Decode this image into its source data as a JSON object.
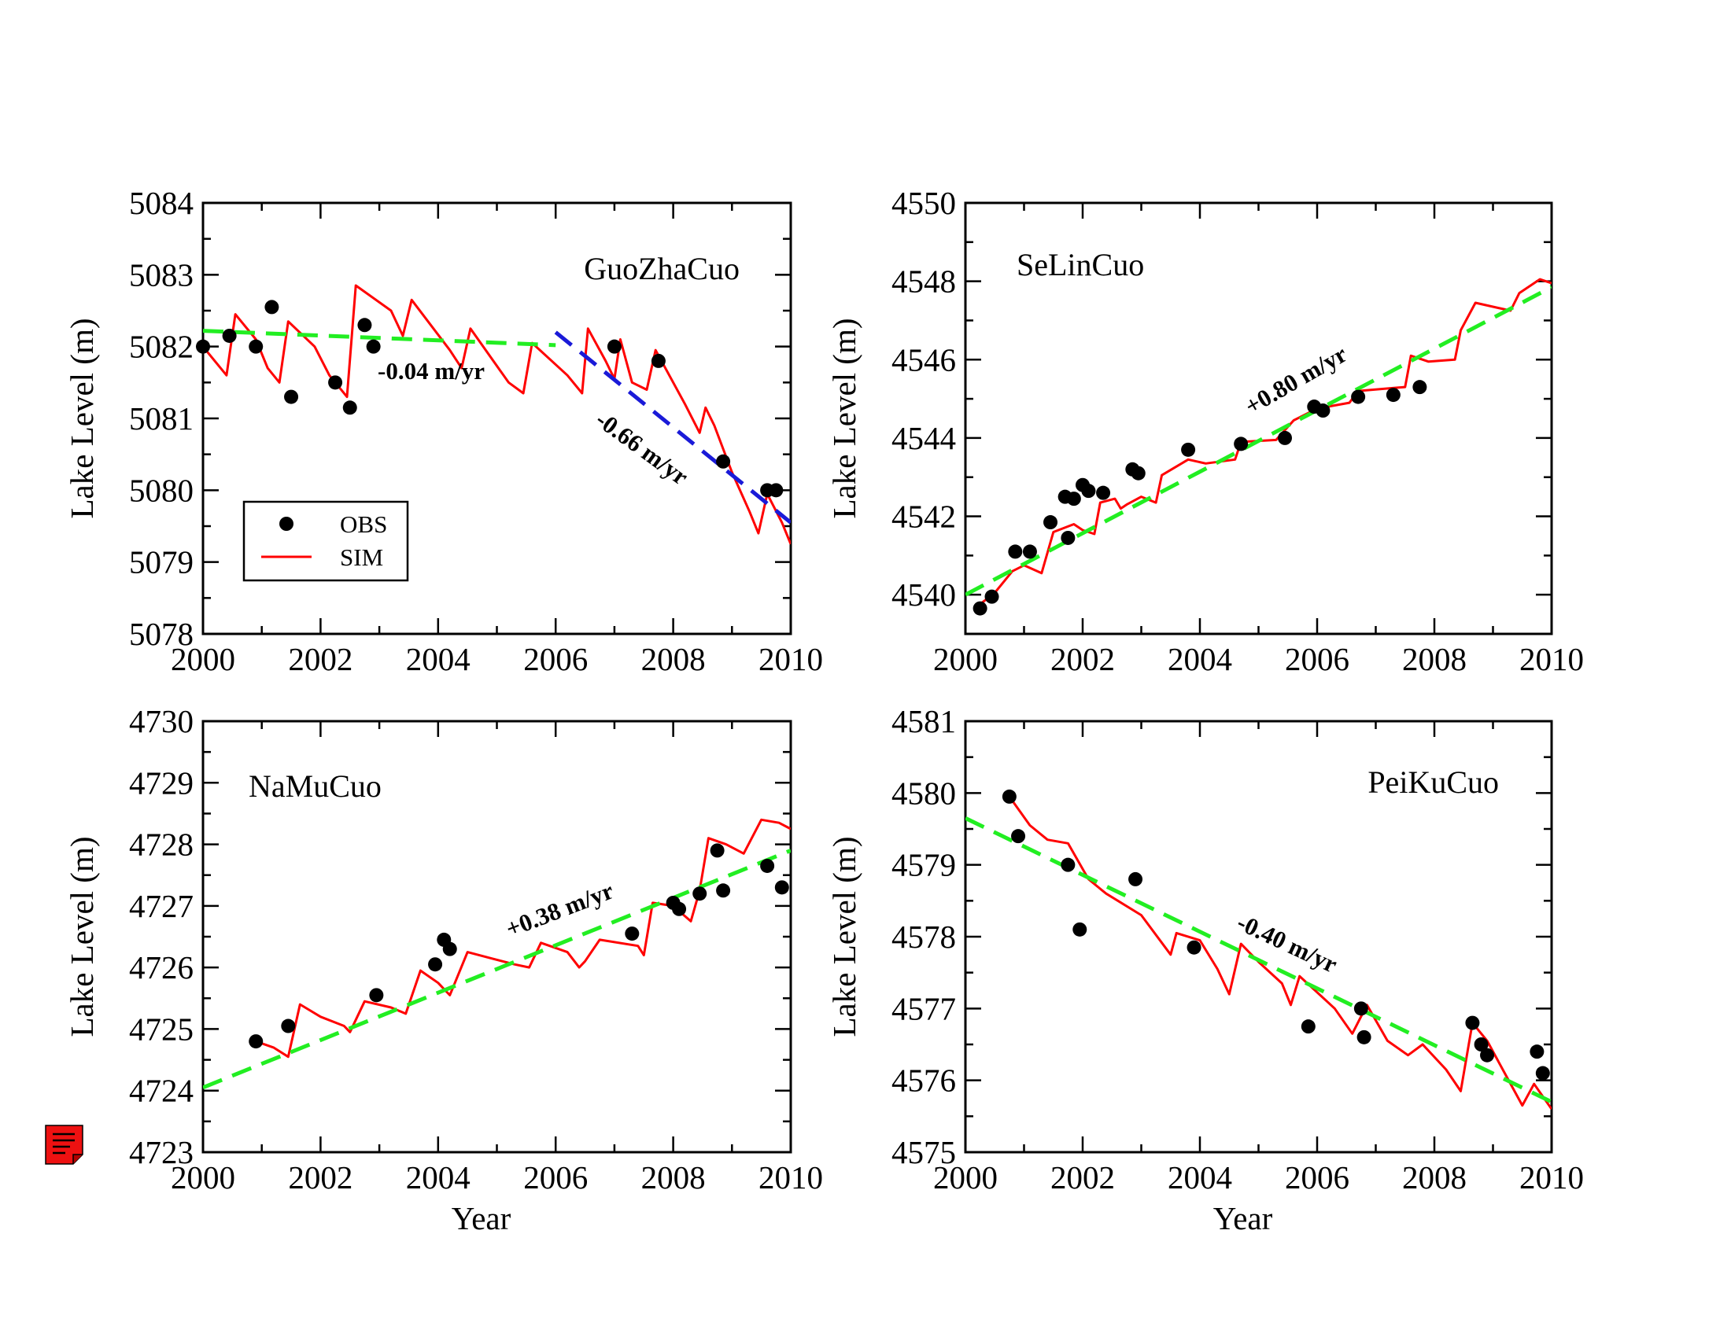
{
  "icons": {
    "note": "note-icon"
  },
  "colors": {
    "obs": "#000000",
    "sim": "#ff0000",
    "trend_green": "#22ee22",
    "trend_blue": "#1a1ad8",
    "note_icon": "#ee1111"
  },
  "chart_data": [
    {
      "type": "line",
      "id": "guozhacuo",
      "panel_label": "GuoZhaCuo",
      "xlabel": "",
      "ylabel": "Lake Level (m)",
      "xlim": [
        2000,
        2010
      ],
      "ylim": [
        5078,
        5084
      ],
      "xticks": [
        2000,
        2002,
        2004,
        2006,
        2008,
        2010
      ],
      "yticks": [
        5078,
        5079,
        5080,
        5081,
        5082,
        5083,
        5084
      ],
      "legend": {
        "position": "bottom-left",
        "entries": [
          "OBS",
          "SIM"
        ]
      },
      "obs": [
        [
          2000.0,
          5082.0
        ],
        [
          2000.45,
          5082.15
        ],
        [
          2000.9,
          5082.0
        ],
        [
          2001.17,
          5082.55
        ],
        [
          2001.5,
          5081.3
        ],
        [
          2002.25,
          5081.5
        ],
        [
          2002.5,
          5081.15
        ],
        [
          2002.75,
          5082.3
        ],
        [
          2002.9,
          5082.0
        ],
        [
          2007.0,
          5082.0
        ],
        [
          2007.75,
          5081.8
        ],
        [
          2008.85,
          5080.4
        ],
        [
          2009.6,
          5080.0
        ],
        [
          2009.75,
          5080.0
        ]
      ],
      "sim": [
        [
          2000.0,
          5082.0
        ],
        [
          2000.4,
          5081.6
        ],
        [
          2000.55,
          5082.45
        ],
        [
          2000.9,
          5082.1
        ],
        [
          2001.1,
          5081.7
        ],
        [
          2001.3,
          5081.5
        ],
        [
          2001.45,
          5082.35
        ],
        [
          2001.9,
          5082.0
        ],
        [
          2002.15,
          5081.6
        ],
        [
          2002.45,
          5081.3
        ],
        [
          2002.6,
          5082.85
        ],
        [
          2003.2,
          5082.5
        ],
        [
          2003.4,
          5082.15
        ],
        [
          2003.55,
          5082.65
        ],
        [
          2004.2,
          5081.95
        ],
        [
          2004.4,
          5081.7
        ],
        [
          2004.55,
          5082.25
        ],
        [
          2005.2,
          5081.5
        ],
        [
          2005.45,
          5081.35
        ],
        [
          2005.6,
          5082.05
        ],
        [
          2006.2,
          5081.6
        ],
        [
          2006.45,
          5081.35
        ],
        [
          2006.55,
          5082.25
        ],
        [
          2006.85,
          5081.8
        ],
        [
          2007.0,
          5081.55
        ],
        [
          2007.1,
          5082.1
        ],
        [
          2007.3,
          5081.5
        ],
        [
          2007.55,
          5081.4
        ],
        [
          2007.7,
          5081.95
        ],
        [
          2008.2,
          5081.2
        ],
        [
          2008.45,
          5080.8
        ],
        [
          2008.55,
          5081.15
        ],
        [
          2008.7,
          5080.9
        ],
        [
          2009.0,
          5080.25
        ],
        [
          2009.3,
          5079.7
        ],
        [
          2009.45,
          5079.4
        ],
        [
          2009.6,
          5079.95
        ],
        [
          2009.85,
          5079.55
        ],
        [
          2010.0,
          5079.25
        ]
      ],
      "trends": [
        {
          "label": "-0.04 m/yr",
          "color": "green",
          "from": [
            2000.0,
            5082.22
          ],
          "to": [
            2006.0,
            5082.02
          ]
        },
        {
          "label": "-0.66 m/yr",
          "color": "blue",
          "from": [
            2006.0,
            5082.2
          ],
          "to": [
            2010.0,
            5079.55
          ]
        }
      ]
    },
    {
      "type": "line",
      "id": "selincuo",
      "panel_label": "SeLinCuo",
      "xlabel": "",
      "ylabel": "Lake Level (m)",
      "xlim": [
        2000,
        2010
      ],
      "ylim": [
        4539,
        4550
      ],
      "xticks": [
        2000,
        2002,
        2004,
        2006,
        2008,
        2010
      ],
      "yticks": [
        4540,
        4542,
        4544,
        4546,
        4548,
        4550
      ],
      "obs": [
        [
          2000.25,
          4539.65
        ],
        [
          2000.45,
          4539.95
        ],
        [
          2000.85,
          4541.1
        ],
        [
          2001.1,
          4541.1
        ],
        [
          2001.45,
          4541.85
        ],
        [
          2001.7,
          4542.5
        ],
        [
          2001.75,
          4541.45
        ],
        [
          2001.85,
          4542.45
        ],
        [
          2002.0,
          4542.8
        ],
        [
          2002.1,
          4542.65
        ],
        [
          2002.35,
          4542.6
        ],
        [
          2002.85,
          4543.2
        ],
        [
          2002.95,
          4543.1
        ],
        [
          2003.8,
          4543.7
        ],
        [
          2004.7,
          4543.85
        ],
        [
          2005.45,
          4544.0
        ],
        [
          2005.95,
          4544.8
        ],
        [
          2006.1,
          4544.7
        ],
        [
          2006.7,
          4545.05
        ],
        [
          2007.3,
          4545.1
        ],
        [
          2007.75,
          4545.3
        ]
      ],
      "sim": [
        [
          2000.2,
          4539.7
        ],
        [
          2000.5,
          4540.05
        ],
        [
          2000.8,
          4540.6
        ],
        [
          2001.0,
          4540.75
        ],
        [
          2001.3,
          4540.55
        ],
        [
          2001.5,
          4541.6
        ],
        [
          2001.85,
          4541.8
        ],
        [
          2002.0,
          4541.65
        ],
        [
          2002.2,
          4541.55
        ],
        [
          2002.3,
          4542.35
        ],
        [
          2002.55,
          4542.45
        ],
        [
          2002.65,
          4542.2
        ],
        [
          2002.75,
          4542.3
        ],
        [
          2003.0,
          4542.5
        ],
        [
          2003.25,
          4542.35
        ],
        [
          2003.35,
          4543.05
        ],
        [
          2003.8,
          4543.45
        ],
        [
          2004.1,
          4543.35
        ],
        [
          2004.6,
          4543.45
        ],
        [
          2004.7,
          4543.9
        ],
        [
          2005.3,
          4543.95
        ],
        [
          2005.6,
          4544.45
        ],
        [
          2006.0,
          4544.75
        ],
        [
          2006.55,
          4544.9
        ],
        [
          2006.7,
          4545.2
        ],
        [
          2007.5,
          4545.3
        ],
        [
          2007.6,
          4546.1
        ],
        [
          2007.9,
          4545.95
        ],
        [
          2008.35,
          4546.0
        ],
        [
          2008.45,
          4546.75
        ],
        [
          2008.7,
          4547.45
        ],
        [
          2009.3,
          4547.25
        ],
        [
          2009.45,
          4547.7
        ],
        [
          2009.8,
          4548.05
        ],
        [
          2010.0,
          4547.95
        ]
      ],
      "trends": [
        {
          "label": "+0.80 m/yr",
          "color": "green",
          "from": [
            2000.0,
            4540.0
          ],
          "to": [
            2010.0,
            4547.85
          ]
        }
      ]
    },
    {
      "type": "line",
      "id": "namucuo",
      "panel_label": "NaMuCuo",
      "xlabel": "Year",
      "ylabel": "Lake Level (m)",
      "xlim": [
        2000,
        2010
      ],
      "ylim": [
        4723,
        4730
      ],
      "xticks": [
        2000,
        2002,
        2004,
        2006,
        2008,
        2010
      ],
      "yticks": [
        4723,
        4724,
        4725,
        4726,
        4727,
        4728,
        4729,
        4730
      ],
      "obs": [
        [
          2000.9,
          4724.8
        ],
        [
          2001.45,
          4725.05
        ],
        [
          2002.95,
          4725.55
        ],
        [
          2003.95,
          4726.05
        ],
        [
          2004.1,
          4726.45
        ],
        [
          2004.2,
          4726.3
        ],
        [
          2007.3,
          4726.55
        ],
        [
          2008.0,
          4727.05
        ],
        [
          2008.1,
          4726.95
        ],
        [
          2008.45,
          4727.2
        ],
        [
          2008.75,
          4727.9
        ],
        [
          2008.85,
          4727.25
        ],
        [
          2009.6,
          4727.65
        ],
        [
          2009.85,
          4727.3
        ]
      ],
      "sim": [
        [
          2000.9,
          4724.8
        ],
        [
          2001.2,
          4724.7
        ],
        [
          2001.45,
          4724.55
        ],
        [
          2001.65,
          4725.4
        ],
        [
          2002.0,
          4725.2
        ],
        [
          2002.4,
          4725.05
        ],
        [
          2002.5,
          4724.95
        ],
        [
          2002.75,
          4725.45
        ],
        [
          2003.2,
          4725.35
        ],
        [
          2003.45,
          4725.25
        ],
        [
          2003.7,
          4725.95
        ],
        [
          2004.0,
          4725.75
        ],
        [
          2004.2,
          4725.55
        ],
        [
          2004.5,
          4726.25
        ],
        [
          2004.9,
          4726.15
        ],
        [
          2005.3,
          4726.05
        ],
        [
          2005.55,
          4726.0
        ],
        [
          2005.75,
          4726.4
        ],
        [
          2006.2,
          4726.25
        ],
        [
          2006.4,
          4726.0
        ],
        [
          2006.5,
          4726.1
        ],
        [
          2006.75,
          4726.45
        ],
        [
          2007.4,
          4726.35
        ],
        [
          2007.5,
          4726.2
        ],
        [
          2007.65,
          4727.05
        ],
        [
          2008.0,
          4727.0
        ],
        [
          2008.3,
          4726.75
        ],
        [
          2008.45,
          4727.25
        ],
        [
          2008.6,
          4728.1
        ],
        [
          2008.9,
          4728.0
        ],
        [
          2009.2,
          4727.85
        ],
        [
          2009.5,
          4728.4
        ],
        [
          2009.8,
          4728.35
        ],
        [
          2010.0,
          4728.25
        ]
      ],
      "trends": [
        {
          "label": "+0.38 m/yr",
          "color": "green",
          "from": [
            2000.0,
            4724.05
          ],
          "to": [
            2010.0,
            4727.9
          ]
        }
      ]
    },
    {
      "type": "line",
      "id": "peikucuo",
      "panel_label": "PeiKuCuo",
      "xlabel": "Year",
      "ylabel": "Lake Level (m)",
      "xlim": [
        2000,
        2010
      ],
      "ylim": [
        4575,
        4581
      ],
      "xticks": [
        2000,
        2002,
        2004,
        2006,
        2008,
        2010
      ],
      "yticks": [
        4575,
        4576,
        4577,
        4578,
        4579,
        4580,
        4581
      ],
      "obs": [
        [
          2000.75,
          4579.95
        ],
        [
          2000.9,
          4579.4
        ],
        [
          2001.75,
          4579.0
        ],
        [
          2001.95,
          4578.1
        ],
        [
          2002.9,
          4578.8
        ],
        [
          2003.9,
          4577.85
        ],
        [
          2005.85,
          4576.75
        ],
        [
          2006.75,
          4577.0
        ],
        [
          2006.8,
          4576.6
        ],
        [
          2008.65,
          4576.8
        ],
        [
          2008.8,
          4576.5
        ],
        [
          2008.9,
          4576.35
        ],
        [
          2009.75,
          4576.4
        ],
        [
          2009.85,
          4576.1
        ]
      ],
      "sim": [
        [
          2000.75,
          4579.95
        ],
        [
          2001.1,
          4579.55
        ],
        [
          2001.4,
          4579.35
        ],
        [
          2001.75,
          4579.3
        ],
        [
          2002.1,
          4578.8
        ],
        [
          2002.4,
          4578.6
        ],
        [
          2002.6,
          4578.5
        ],
        [
          2003.0,
          4578.3
        ],
        [
          2003.5,
          4577.75
        ],
        [
          2003.6,
          4578.05
        ],
        [
          2004.0,
          4577.95
        ],
        [
          2004.3,
          4577.55
        ],
        [
          2004.5,
          4577.2
        ],
        [
          2004.7,
          4577.9
        ],
        [
          2005.0,
          4577.65
        ],
        [
          2005.4,
          4577.35
        ],
        [
          2005.55,
          4577.05
        ],
        [
          2005.7,
          4577.45
        ],
        [
          2006.3,
          4577.0
        ],
        [
          2006.6,
          4576.65
        ],
        [
          2006.85,
          4577.05
        ],
        [
          2007.2,
          4576.55
        ],
        [
          2007.55,
          4576.35
        ],
        [
          2007.8,
          4576.5
        ],
        [
          2008.2,
          4576.15
        ],
        [
          2008.45,
          4575.85
        ],
        [
          2008.65,
          4576.8
        ],
        [
          2008.9,
          4576.55
        ],
        [
          2009.2,
          4576.1
        ],
        [
          2009.5,
          4575.65
        ],
        [
          2009.7,
          4575.95
        ],
        [
          2010.0,
          4575.6
        ]
      ],
      "trends": [
        {
          "label": "-0.40 m/yr",
          "color": "green",
          "from": [
            2000.0,
            4579.65
          ],
          "to": [
            2010.0,
            4575.7
          ]
        }
      ]
    }
  ]
}
